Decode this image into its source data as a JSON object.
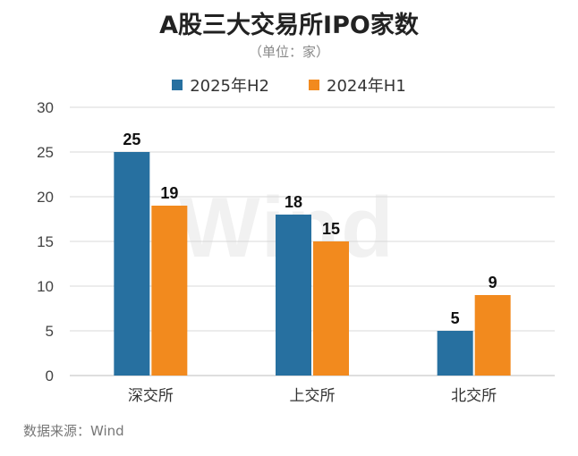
{
  "chart_data": {
    "type": "bar",
    "title": "A股三大交易所IPO家数",
    "subtitle": "（单位：家）",
    "categories": [
      "深交所",
      "上交所",
      "北交所"
    ],
    "series": [
      {
        "name": "2025年H2",
        "values": [
          25,
          18,
          5
        ],
        "color": "#2770A0"
      },
      {
        "name": "2024年H1",
        "values": [
          19,
          15,
          9
        ],
        "color": "#F28A1E"
      }
    ],
    "ylim": [
      0,
      30
    ],
    "yticks": [
      0,
      5,
      10,
      15,
      20,
      25,
      30
    ],
    "grid": true,
    "legend_position": "top-center",
    "watermark": "Wind"
  },
  "footer": {
    "source": "数据来源：Wind"
  }
}
